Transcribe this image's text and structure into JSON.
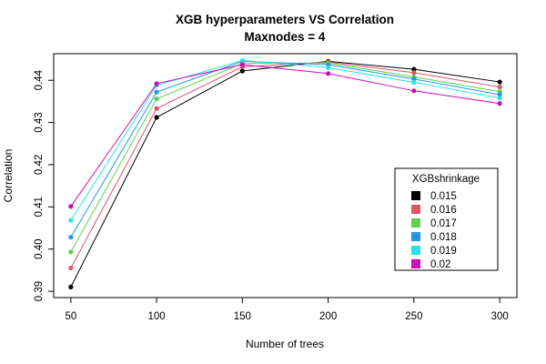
{
  "chart_data": {
    "type": "line",
    "title": "XGB hyperparameters VS Correlation",
    "subtitle": "Maxnodes = 4",
    "xlabel": "Number of trees",
    "ylabel": "Correlation",
    "x": [
      50,
      100,
      150,
      200,
      250,
      300
    ],
    "xticks": [
      50,
      100,
      150,
      200,
      250,
      300
    ],
    "yticks": [
      0.39,
      0.4,
      0.41,
      0.42,
      0.43,
      0.44
    ],
    "ytick_labels": [
      "0.39",
      "0.40",
      "0.41",
      "0.42",
      "0.43",
      "0.44"
    ],
    "xlim": [
      40,
      310
    ],
    "ylim": [
      0.3885,
      0.4463
    ],
    "grid": false,
    "legend": {
      "title": "XGBshrinkage",
      "position": "right"
    },
    "series": [
      {
        "name": "0.015",
        "color": "#000000",
        "values": [
          0.391,
          0.4312,
          0.4422,
          0.4445,
          0.4426,
          0.4396
        ]
      },
      {
        "name": "0.016",
        "color": "#DF536B",
        "values": [
          0.3955,
          0.4333,
          0.4432,
          0.4443,
          0.4418,
          0.4384
        ]
      },
      {
        "name": "0.017",
        "color": "#61D04F",
        "values": [
          0.3993,
          0.4356,
          0.444,
          0.4441,
          0.4408,
          0.4373
        ]
      },
      {
        "name": "0.018",
        "color": "#2297E6",
        "values": [
          0.4028,
          0.4372,
          0.4445,
          0.4437,
          0.4403,
          0.4366
        ]
      },
      {
        "name": "0.019",
        "color": "#28E2E5",
        "values": [
          0.4068,
          0.4388,
          0.4447,
          0.443,
          0.4395,
          0.4358
        ]
      },
      {
        "name": "0.02",
        "color": "#CD0BBC",
        "values": [
          0.4101,
          0.4392,
          0.4437,
          0.4416,
          0.4375,
          0.4345
        ]
      }
    ]
  }
}
